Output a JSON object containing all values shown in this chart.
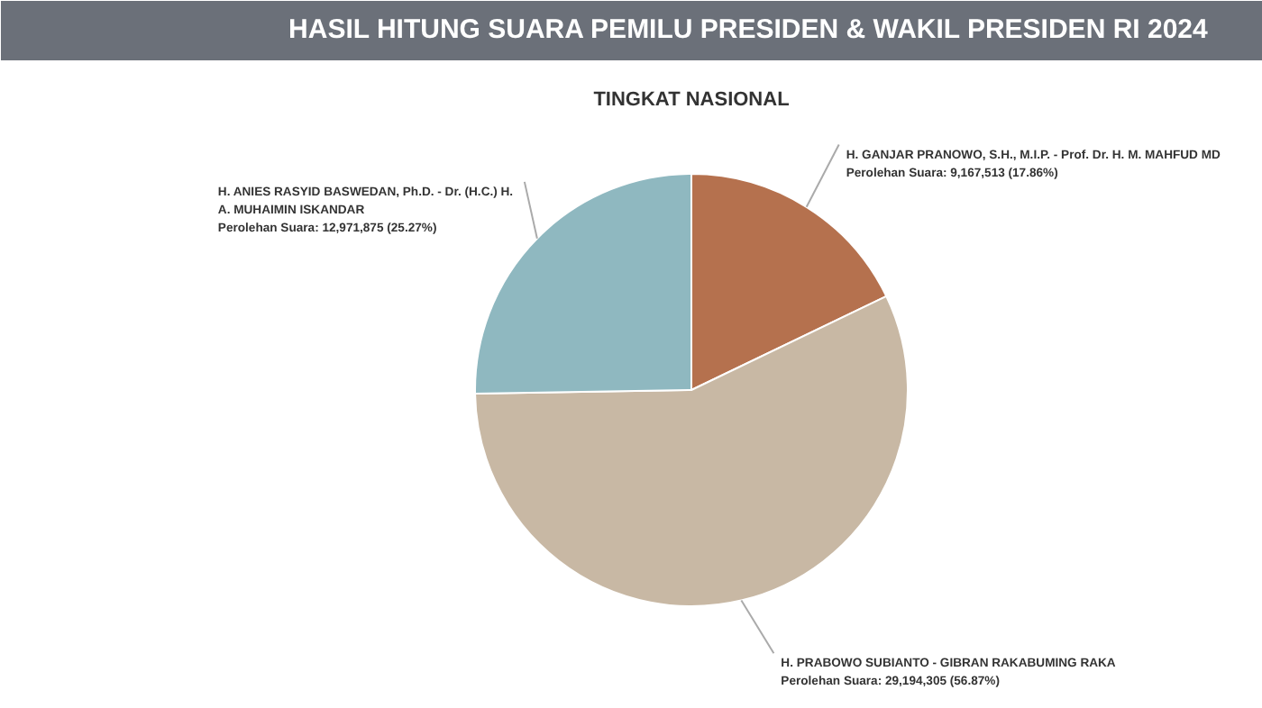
{
  "chart_data": {
    "type": "pie",
    "title": "HASIL HITUNG SUARA PEMILU PRESIDEN & WAKIL PRESIDEN RI 2024",
    "subtitle": "TINGKAT NASIONAL",
    "categories": [
      "H. GANJAR PRANOWO, S.H., M.I.P. - Prof. Dr. H. M. MAHFUD MD",
      "H. PRABOWO SUBIANTO - GIBRAN RAKABUMING RAKA",
      "H. ANIES RASYID BASWEDAN, Ph.D. - Dr. (H.C.) H. A. MUHAIMIN ISKANDAR"
    ],
    "values": [
      9167513,
      29194305,
      12971875
    ],
    "colors": [
      "#b5714e",
      "#c8b8a4",
      "#8fb8c0"
    ],
    "value_labels": [
      "Perolehan Suara: 9,167,513 (17.86%)",
      "Perolehan Suara: 29,194,305 (56.87%)",
      "Perolehan Suara: 12,971,875 (25.27%)"
    ]
  }
}
